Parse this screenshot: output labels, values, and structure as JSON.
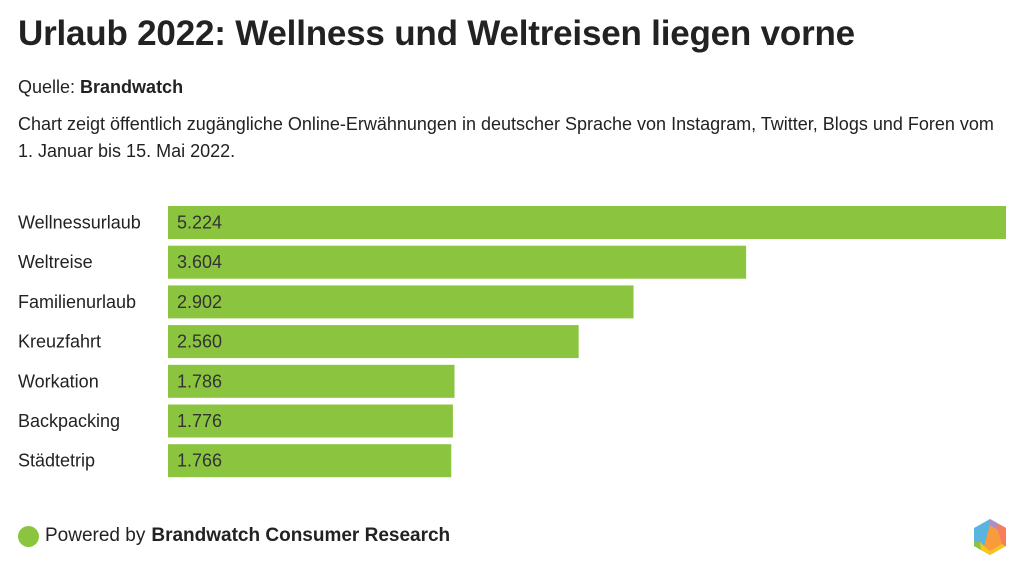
{
  "header": {
    "title": "Urlaub 2022: Wellness und Weltreisen liegen vorne",
    "source_prefix": "Quelle: ",
    "source_name": "Brandwatch",
    "description": "Chart zeigt öffentlich zugängliche Online-Erwähnungen in deutscher Sprache von Instagram, Twitter, Blogs und Foren vom 1. Januar bis 15. Mai 2022."
  },
  "chart_data": {
    "type": "bar",
    "orientation": "horizontal",
    "title": "Urlaub 2022: Wellness und Weltreisen liegen vorne",
    "xlabel": "",
    "ylabel": "",
    "categories": [
      "Wellnessurlaub",
      "Weltreise",
      "Familienurlaub",
      "Kreuzfahrt",
      "Workation",
      "Backpacking",
      "Städtetrip"
    ],
    "values": [
      5224,
      3604,
      2902,
      2560,
      1786,
      1776,
      1766
    ],
    "value_labels": [
      "5.224",
      "3.604",
      "2.902",
      "2.560",
      "1.786",
      "1.776",
      "1.766"
    ],
    "xlim": [
      0,
      5224
    ],
    "grid": false,
    "legend": "none",
    "bar_color": "#8bc53f"
  },
  "footer": {
    "prefix": "Powered by",
    "brand": "Brandwatch Consumer Research",
    "dot_color": "#8bc53f",
    "logo_icon": "brandwatch-hexagon-logo"
  }
}
